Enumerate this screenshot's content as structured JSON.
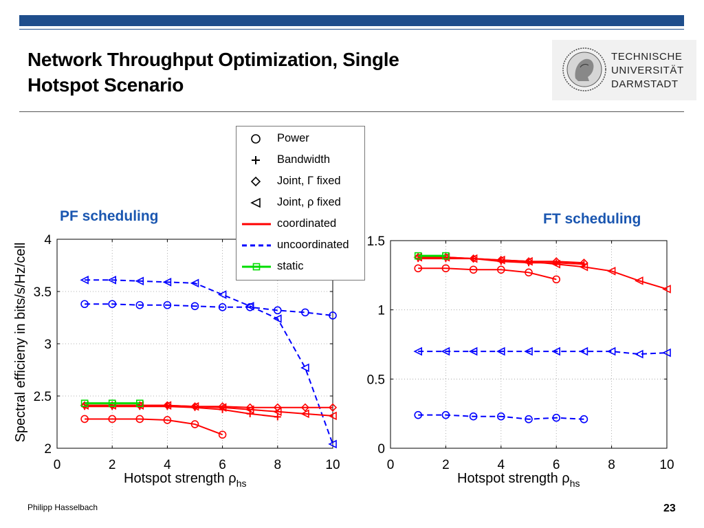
{
  "slide": {
    "title_line1": "Network Throughput Optimization, Single",
    "title_line2": "Hotspot Scenario",
    "logo_lines": [
      "TECHNISCHE",
      "UNIVERSITÄT",
      "DARMSTADT"
    ],
    "author": "Philipp Hasselbach",
    "page_number": "23",
    "bar_color": "#1f4e8c"
  },
  "legend": {
    "items": [
      {
        "label": "Power",
        "kind": "marker",
        "marker": "circle"
      },
      {
        "label": "Bandwidth",
        "kind": "marker",
        "marker": "plus"
      },
      {
        "label": "Joint, Γ fixed",
        "kind": "marker",
        "marker": "diamond"
      },
      {
        "label": "Joint, ρ fixed",
        "kind": "marker",
        "marker": "triangle-left"
      },
      {
        "label": "coordinated",
        "kind": "line",
        "color": "#ff0000",
        "dash": false
      },
      {
        "label": "uncoordinated",
        "kind": "line",
        "color": "#0000ff",
        "dash": true
      },
      {
        "label": "static",
        "kind": "line",
        "color": "#00dd00",
        "dash": false,
        "marker": "square"
      }
    ]
  },
  "chart_data": [
    {
      "type": "line",
      "title": "PF scheduling",
      "xlabel": "Hotspot strength ρ",
      "xlabel_sub": "hs",
      "ylabel": "Spectral efficieny in bits/s/Hz/cell",
      "xlim": [
        0,
        10
      ],
      "ylim": [
        2,
        4
      ],
      "xticks": [
        "0",
        "2",
        "4",
        "6",
        "8",
        "10"
      ],
      "yticks": [
        "2",
        "2.5",
        "3",
        "3.5",
        "4"
      ],
      "grid": true,
      "colors": {
        "coordinated": "#ff0000",
        "uncoordinated": "#0000ff",
        "static": "#00dd00"
      },
      "series": [
        {
          "name": "uncoordinated",
          "marker": "triangle-left",
          "x": [
            1,
            2,
            3,
            4,
            5,
            6,
            7,
            8,
            9,
            10
          ],
          "y": [
            3.61,
            3.61,
            3.6,
            3.59,
            3.58,
            3.47,
            3.36,
            3.24,
            2.77,
            2.04
          ]
        },
        {
          "name": "uncoordinated",
          "marker": "circle",
          "x": [
            1,
            2,
            3,
            4,
            5,
            6,
            7,
            8,
            9,
            10
          ],
          "y": [
            3.38,
            3.38,
            3.37,
            3.37,
            3.36,
            3.35,
            3.35,
            3.32,
            3.3,
            3.27
          ]
        },
        {
          "name": "coordinated",
          "marker": "diamond",
          "x": [
            1,
            2,
            3,
            4,
            5,
            6,
            7,
            8,
            9,
            10
          ],
          "y": [
            2.41,
            2.41,
            2.41,
            2.41,
            2.4,
            2.4,
            2.39,
            2.39,
            2.39,
            2.39
          ]
        },
        {
          "name": "coordinated",
          "marker": "triangle-left",
          "x": [
            1,
            2,
            3,
            4,
            5,
            6,
            7,
            8,
            9,
            10
          ],
          "y": [
            2.41,
            2.41,
            2.41,
            2.41,
            2.4,
            2.39,
            2.37,
            2.35,
            2.33,
            2.31
          ]
        },
        {
          "name": "coordinated",
          "marker": "plus",
          "x": [
            1,
            2,
            3,
            4,
            5,
            6,
            7,
            8
          ],
          "y": [
            2.4,
            2.4,
            2.4,
            2.4,
            2.39,
            2.37,
            2.33,
            2.3
          ]
        },
        {
          "name": "coordinated",
          "marker": "circle",
          "x": [
            1,
            2,
            3,
            4,
            5,
            6
          ],
          "y": [
            2.28,
            2.28,
            2.28,
            2.27,
            2.23,
            2.13
          ]
        },
        {
          "name": "static",
          "marker": "square",
          "x": [
            1,
            2,
            3
          ],
          "y": [
            2.43,
            2.43,
            2.43
          ]
        }
      ]
    },
    {
      "type": "line",
      "title": "FT scheduling",
      "xlabel": "Hotspot strength ρ",
      "xlabel_sub": "hs",
      "ylabel": "",
      "xlim": [
        0,
        10
      ],
      "ylim": [
        0,
        1.5
      ],
      "xticks": [
        "0",
        "2",
        "4",
        "6",
        "8",
        "10"
      ],
      "yticks": [
        "0",
        "0.5",
        "1",
        "1.5"
      ],
      "grid": true,
      "colors": {
        "coordinated": "#ff0000",
        "uncoordinated": "#0000ff",
        "static": "#00dd00"
      },
      "series": [
        {
          "name": "coordinated",
          "marker": "triangle-left",
          "x": [
            1,
            2,
            3,
            4,
            5,
            6,
            7,
            8,
            9,
            10
          ],
          "y": [
            1.38,
            1.38,
            1.37,
            1.36,
            1.35,
            1.33,
            1.31,
            1.28,
            1.21,
            1.15
          ]
        },
        {
          "name": "coordinated",
          "marker": "diamond",
          "x": [
            1,
            2,
            3,
            4,
            5,
            6,
            7
          ],
          "y": [
            1.38,
            1.38,
            1.37,
            1.36,
            1.35,
            1.35,
            1.34
          ]
        },
        {
          "name": "coordinated",
          "marker": "plus",
          "x": [
            1,
            2,
            3,
            4,
            5,
            6,
            7
          ],
          "y": [
            1.37,
            1.37,
            1.37,
            1.35,
            1.34,
            1.34,
            1.33
          ]
        },
        {
          "name": "coordinated",
          "marker": "circle",
          "x": [
            1,
            2,
            3,
            4,
            5,
            6
          ],
          "y": [
            1.3,
            1.3,
            1.29,
            1.29,
            1.27,
            1.22
          ]
        },
        {
          "name": "static",
          "marker": "square",
          "x": [
            1,
            2
          ],
          "y": [
            1.39,
            1.39
          ]
        },
        {
          "name": "uncoordinated",
          "marker": "triangle-left",
          "x": [
            1,
            2,
            3,
            4,
            5,
            6,
            7,
            8,
            9,
            10
          ],
          "y": [
            0.7,
            0.7,
            0.7,
            0.7,
            0.7,
            0.7,
            0.7,
            0.7,
            0.68,
            0.69
          ]
        },
        {
          "name": "uncoordinated",
          "marker": "circle",
          "x": [
            1,
            2,
            3,
            4,
            5,
            6,
            7
          ],
          "y": [
            0.24,
            0.24,
            0.23,
            0.23,
            0.21,
            0.22,
            0.21
          ]
        }
      ]
    }
  ]
}
